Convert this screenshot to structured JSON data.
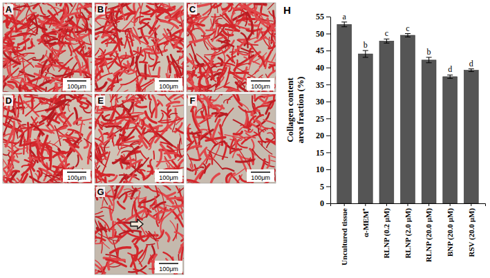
{
  "chart_data": {
    "type": "bar",
    "y_label": "Collagen content area fraction (%)",
    "categories": [
      "Uncultured tissue",
      "α-MEM⁺",
      "RLNP (0.2 μM)",
      "RLNP (2.0 μM)",
      "RLNP (20.0 μM)",
      "BNP (20.0 μM)",
      "RSV (20.0 μM)"
    ],
    "values": [
      52.7,
      44.0,
      47.8,
      49.5,
      42.2,
      37.3,
      39.2
    ],
    "errors": [
      0.7,
      1.0,
      0.6,
      0.5,
      0.8,
      0.5,
      0.4
    ],
    "annotations": [
      "a",
      "b",
      "c",
      "c",
      "b",
      "d",
      "d"
    ],
    "color": "#555555",
    "ylim": [
      0,
      55
    ],
    "yticks": [
      0,
      5,
      10,
      15,
      20,
      25,
      30,
      35,
      40,
      45,
      50,
      55
    ],
    "grid": false
  },
  "chart_label": "H",
  "panels": [
    {
      "label": "A",
      "scale_bar": "100μm"
    },
    {
      "label": "B",
      "scale_bar": "100μm"
    },
    {
      "label": "C",
      "scale_bar": "100μm"
    },
    {
      "label": "D",
      "scale_bar": "100μm"
    },
    {
      "label": "E",
      "scale_bar": "100μm"
    },
    {
      "label": "F",
      "scale_bar": "100μm"
    },
    {
      "label": "G",
      "scale_bar": "100μm"
    }
  ]
}
